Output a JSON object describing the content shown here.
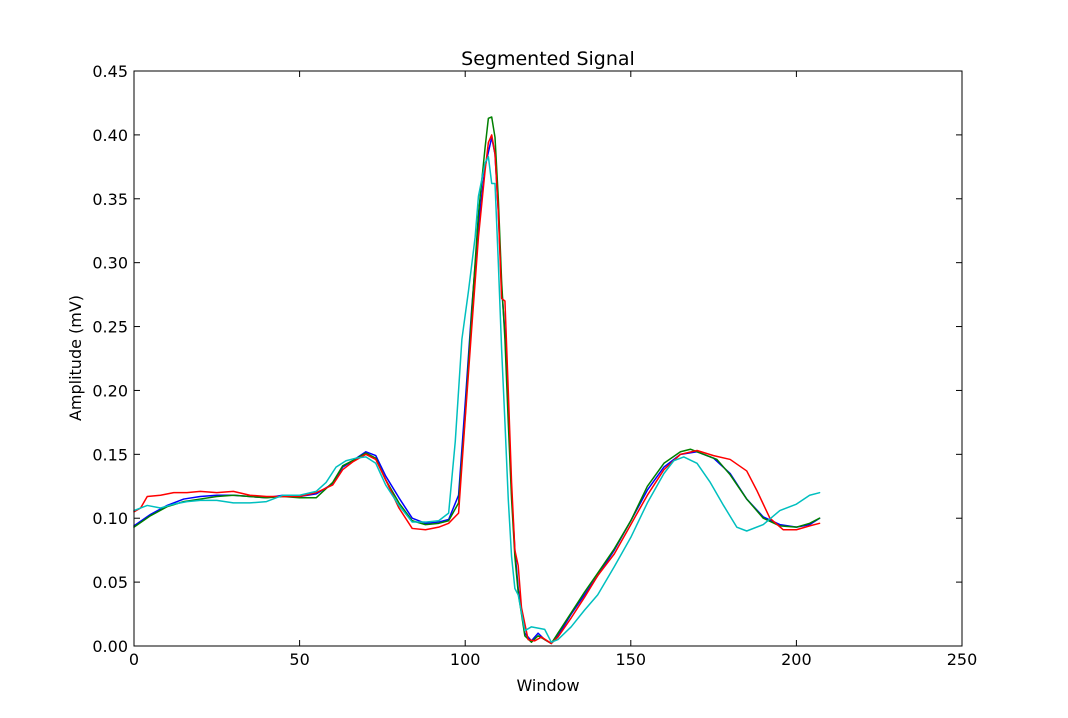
{
  "chart_data": {
    "type": "line",
    "title": "Segmented Signal",
    "xlabel": "Window",
    "ylabel": "Amplitude (mV)",
    "xlim": [
      0,
      250
    ],
    "ylim": [
      0,
      0.45
    ],
    "xticks": [
      0,
      50,
      100,
      150,
      200,
      250
    ],
    "xtick_labels": [
      "0",
      "50",
      "100",
      "150",
      "200",
      "250"
    ],
    "yticks": [
      0,
      0.05,
      0.1,
      0.15,
      0.2,
      0.25,
      0.3,
      0.35,
      0.4,
      0.45
    ],
    "ytick_labels": [
      "0.00",
      "0.05",
      "0.10",
      "0.15",
      "0.20",
      "0.25",
      "0.30",
      "0.35",
      "0.40",
      "0.45"
    ],
    "grid": false,
    "legend": "none",
    "series": [
      {
        "color": "#0000ff",
        "points": [
          [
            0,
            0.094
          ],
          [
            5,
            0.103
          ],
          [
            10,
            0.11
          ],
          [
            15,
            0.115
          ],
          [
            20,
            0.117
          ],
          [
            25,
            0.118
          ],
          [
            30,
            0.118
          ],
          [
            35,
            0.117
          ],
          [
            40,
            0.116
          ],
          [
            45,
            0.118
          ],
          [
            50,
            0.117
          ],
          [
            55,
            0.119
          ],
          [
            60,
            0.127
          ],
          [
            63,
            0.14
          ],
          [
            66,
            0.145
          ],
          [
            70,
            0.152
          ],
          [
            73,
            0.149
          ],
          [
            76,
            0.133
          ],
          [
            80,
            0.116
          ],
          [
            84,
            0.1
          ],
          [
            88,
            0.096
          ],
          [
            92,
            0.097
          ],
          [
            95,
            0.099
          ],
          [
            98,
            0.118
          ],
          [
            100,
            0.19
          ],
          [
            102,
            0.265
          ],
          [
            104,
            0.33
          ],
          [
            106,
            0.375
          ],
          [
            108,
            0.398
          ],
          [
            109,
            0.385
          ],
          [
            110,
            0.34
          ],
          [
            111,
            0.28
          ],
          [
            112,
            0.245
          ],
          [
            113,
            0.185
          ],
          [
            114,
            0.12
          ],
          [
            115,
            0.075
          ],
          [
            116,
            0.045
          ],
          [
            118,
            0.01
          ],
          [
            120,
            0.004
          ],
          [
            122,
            0.01
          ],
          [
            124,
            0.005
          ],
          [
            126,
            0.002
          ],
          [
            128,
            0.008
          ],
          [
            132,
            0.025
          ],
          [
            136,
            0.04
          ],
          [
            140,
            0.055
          ],
          [
            145,
            0.075
          ],
          [
            150,
            0.098
          ],
          [
            155,
            0.122
          ],
          [
            160,
            0.14
          ],
          [
            165,
            0.15
          ],
          [
            170,
            0.152
          ],
          [
            175,
            0.147
          ],
          [
            180,
            0.135
          ],
          [
            185,
            0.115
          ],
          [
            190,
            0.101
          ],
          [
            195,
            0.095
          ],
          [
            200,
            0.093
          ],
          [
            204,
            0.095
          ],
          [
            207,
            0.1
          ]
        ]
      },
      {
        "color": "#008000",
        "points": [
          [
            0,
            0.093
          ],
          [
            5,
            0.102
          ],
          [
            10,
            0.109
          ],
          [
            15,
            0.113
          ],
          [
            20,
            0.115
          ],
          [
            25,
            0.117
          ],
          [
            30,
            0.118
          ],
          [
            35,
            0.117
          ],
          [
            40,
            0.116
          ],
          [
            45,
            0.117
          ],
          [
            50,
            0.116
          ],
          [
            55,
            0.116
          ],
          [
            60,
            0.128
          ],
          [
            63,
            0.141
          ],
          [
            66,
            0.145
          ],
          [
            70,
            0.151
          ],
          [
            73,
            0.147
          ],
          [
            76,
            0.13
          ],
          [
            80,
            0.112
          ],
          [
            84,
            0.098
          ],
          [
            88,
            0.095
          ],
          [
            92,
            0.096
          ],
          [
            95,
            0.098
          ],
          [
            98,
            0.112
          ],
          [
            100,
            0.18
          ],
          [
            102,
            0.262
          ],
          [
            104,
            0.338
          ],
          [
            106,
            0.39
          ],
          [
            107,
            0.413
          ],
          [
            108,
            0.414
          ],
          [
            109,
            0.398
          ],
          [
            110,
            0.35
          ],
          [
            111,
            0.285
          ],
          [
            112,
            0.24
          ],
          [
            113,
            0.175
          ],
          [
            114,
            0.115
          ],
          [
            115,
            0.07
          ],
          [
            116,
            0.042
          ],
          [
            118,
            0.008
          ],
          [
            120,
            0.003
          ],
          [
            122,
            0.008
          ],
          [
            124,
            0.005
          ],
          [
            126,
            0.002
          ],
          [
            128,
            0.01
          ],
          [
            132,
            0.026
          ],
          [
            136,
            0.042
          ],
          [
            140,
            0.057
          ],
          [
            145,
            0.076
          ],
          [
            150,
            0.098
          ],
          [
            155,
            0.125
          ],
          [
            160,
            0.143
          ],
          [
            165,
            0.152
          ],
          [
            168,
            0.154
          ],
          [
            172,
            0.15
          ],
          [
            176,
            0.146
          ],
          [
            180,
            0.134
          ],
          [
            185,
            0.115
          ],
          [
            190,
            0.1
          ],
          [
            195,
            0.094
          ],
          [
            200,
            0.093
          ],
          [
            204,
            0.096
          ],
          [
            207,
            0.1
          ]
        ]
      },
      {
        "color": "#ff0000",
        "points": [
          [
            0,
            0.105
          ],
          [
            2,
            0.108
          ],
          [
            4,
            0.117
          ],
          [
            8,
            0.118
          ],
          [
            12,
            0.12
          ],
          [
            16,
            0.12
          ],
          [
            20,
            0.121
          ],
          [
            25,
            0.12
          ],
          [
            30,
            0.121
          ],
          [
            35,
            0.118
          ],
          [
            40,
            0.117
          ],
          [
            45,
            0.117
          ],
          [
            50,
            0.117
          ],
          [
            55,
            0.12
          ],
          [
            60,
            0.126
          ],
          [
            63,
            0.138
          ],
          [
            66,
            0.144
          ],
          [
            70,
            0.15
          ],
          [
            73,
            0.146
          ],
          [
            76,
            0.13
          ],
          [
            80,
            0.108
          ],
          [
            84,
            0.092
          ],
          [
            88,
            0.091
          ],
          [
            92,
            0.093
          ],
          [
            95,
            0.096
          ],
          [
            98,
            0.104
          ],
          [
            100,
            0.178
          ],
          [
            102,
            0.25
          ],
          [
            104,
            0.32
          ],
          [
            106,
            0.372
          ],
          [
            107,
            0.394
          ],
          [
            108,
            0.4
          ],
          [
            109,
            0.385
          ],
          [
            110,
            0.34
          ],
          [
            111,
            0.272
          ],
          [
            112,
            0.27
          ],
          [
            113,
            0.2
          ],
          [
            114,
            0.128
          ],
          [
            115,
            0.075
          ],
          [
            116,
            0.063
          ],
          [
            117,
            0.03
          ],
          [
            119,
            0.005
          ],
          [
            121,
            0.004
          ],
          [
            123,
            0.007
          ],
          [
            126,
            0.002
          ],
          [
            128,
            0.007
          ],
          [
            132,
            0.022
          ],
          [
            136,
            0.038
          ],
          [
            140,
            0.055
          ],
          [
            145,
            0.072
          ],
          [
            150,
            0.095
          ],
          [
            155,
            0.118
          ],
          [
            160,
            0.138
          ],
          [
            165,
            0.15
          ],
          [
            170,
            0.153
          ],
          [
            175,
            0.149
          ],
          [
            180,
            0.146
          ],
          [
            185,
            0.137
          ],
          [
            188,
            0.122
          ],
          [
            192,
            0.1
          ],
          [
            196,
            0.091
          ],
          [
            200,
            0.091
          ],
          [
            204,
            0.094
          ],
          [
            207,
            0.096
          ]
        ]
      },
      {
        "color": "#00bfbf",
        "points": [
          [
            0,
            0.106
          ],
          [
            4,
            0.11
          ],
          [
            8,
            0.108
          ],
          [
            12,
            0.111
          ],
          [
            16,
            0.113
          ],
          [
            20,
            0.114
          ],
          [
            25,
            0.114
          ],
          [
            30,
            0.112
          ],
          [
            35,
            0.112
          ],
          [
            40,
            0.113
          ],
          [
            45,
            0.118
          ],
          [
            50,
            0.118
          ],
          [
            55,
            0.121
          ],
          [
            58,
            0.128
          ],
          [
            61,
            0.14
          ],
          [
            64,
            0.145
          ],
          [
            67,
            0.147
          ],
          [
            70,
            0.148
          ],
          [
            73,
            0.143
          ],
          [
            76,
            0.126
          ],
          [
            80,
            0.11
          ],
          [
            84,
            0.097
          ],
          [
            88,
            0.097
          ],
          [
            92,
            0.098
          ],
          [
            95,
            0.104
          ],
          [
            97,
            0.16
          ],
          [
            99,
            0.24
          ],
          [
            101,
            0.278
          ],
          [
            103,
            0.32
          ],
          [
            104,
            0.352
          ],
          [
            106,
            0.378
          ],
          [
            107,
            0.383
          ],
          [
            108,
            0.362
          ],
          [
            109,
            0.362
          ],
          [
            110,
            0.3
          ],
          [
            111,
            0.232
          ],
          [
            112,
            0.175
          ],
          [
            113,
            0.115
          ],
          [
            114,
            0.07
          ],
          [
            115,
            0.045
          ],
          [
            116,
            0.04
          ],
          [
            118,
            0.012
          ],
          [
            120,
            0.015
          ],
          [
            122,
            0.014
          ],
          [
            124,
            0.013
          ],
          [
            126,
            0.003
          ],
          [
            128,
            0.005
          ],
          [
            132,
            0.015
          ],
          [
            136,
            0.028
          ],
          [
            140,
            0.04
          ],
          [
            145,
            0.062
          ],
          [
            150,
            0.085
          ],
          [
            155,
            0.112
          ],
          [
            160,
            0.135
          ],
          [
            163,
            0.145
          ],
          [
            166,
            0.148
          ],
          [
            170,
            0.143
          ],
          [
            174,
            0.128
          ],
          [
            178,
            0.11
          ],
          [
            182,
            0.093
          ],
          [
            185,
            0.09
          ],
          [
            190,
            0.095
          ],
          [
            195,
            0.106
          ],
          [
            200,
            0.111
          ],
          [
            204,
            0.118
          ],
          [
            207,
            0.12
          ]
        ]
      }
    ]
  }
}
